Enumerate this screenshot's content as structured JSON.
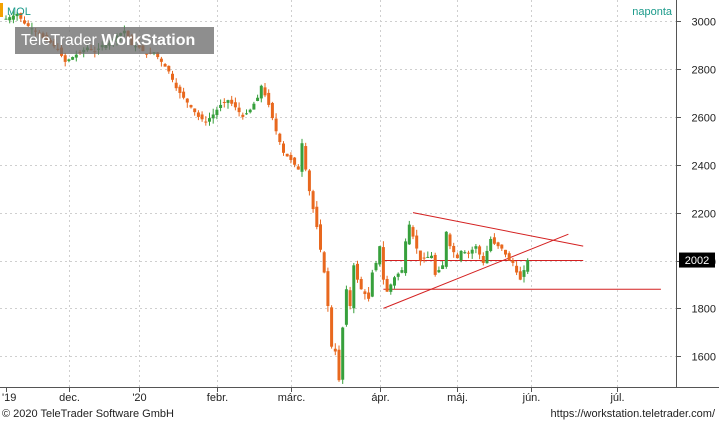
{
  "symbol": "MOL",
  "period_label": "naponta",
  "footer": {
    "copyright": "© 2020 TeleTrader Software GmbH",
    "url": "https://workstation.teletrader.com/"
  },
  "watermark": {
    "brand": "TeleTrader",
    "product": "WorkStation"
  },
  "colors": {
    "up": "#37a03c",
    "down": "#e8681e",
    "trendline": "#d42020",
    "grid": "#cfcfcf",
    "symbol_text": "#1a9a8a"
  },
  "chart_data": {
    "type": "candlestick",
    "title": "MOL",
    "period": "naponta",
    "ylim": [
      1480,
      3080
    ],
    "y_ticks": [
      1600,
      1800,
      2000,
      2200,
      2400,
      2600,
      2800,
      3000
    ],
    "x_ticks": [
      "'19",
      "dec.",
      "'20",
      "febr.",
      "márc.",
      "ápr.",
      "máj.",
      "jún.",
      "júl."
    ],
    "last_value": "2002",
    "last": 2002,
    "close_path": [
      [
        0,
        3010
      ],
      [
        3,
        3030
      ],
      [
        5,
        2990
      ],
      [
        8,
        2960
      ],
      [
        10,
        2930
      ],
      [
        12,
        2910
      ],
      [
        14,
        2880
      ],
      [
        16,
        2830
      ],
      [
        18,
        2850
      ],
      [
        20,
        2870
      ],
      [
        22,
        2890
      ],
      [
        24,
        2870
      ],
      [
        26,
        2900
      ],
      [
        28,
        2910
      ],
      [
        30,
        2940
      ],
      [
        32,
        2960
      ],
      [
        34,
        2900
      ],
      [
        36,
        2890
      ],
      [
        38,
        2860
      ],
      [
        40,
        2870
      ],
      [
        42,
        2830
      ],
      [
        44,
        2790
      ],
      [
        46,
        2720
      ],
      [
        48,
        2680
      ],
      [
        50,
        2640
      ],
      [
        52,
        2600
      ],
      [
        54,
        2580
      ],
      [
        56,
        2610
      ],
      [
        58,
        2650
      ],
      [
        60,
        2670
      ],
      [
        62,
        2640
      ],
      [
        64,
        2600
      ],
      [
        66,
        2630
      ],
      [
        68,
        2680
      ],
      [
        69,
        2730
      ],
      [
        71,
        2650
      ],
      [
        73,
        2540
      ],
      [
        75,
        2450
      ],
      [
        77,
        2420
      ],
      [
        79,
        2380
      ],
      [
        80,
        2490
      ],
      [
        81,
        2380
      ],
      [
        82,
        2290
      ],
      [
        84,
        2140
      ],
      [
        86,
        1950
      ],
      [
        87,
        1810
      ],
      [
        88,
        1640
      ],
      [
        89,
        1620
      ],
      [
        90,
        1500
      ],
      [
        91,
        1720
      ],
      [
        92,
        1880
      ],
      [
        93,
        1810
      ],
      [
        94,
        1980
      ],
      [
        95,
        1920
      ],
      [
        96,
        1880
      ],
      [
        98,
        1840
      ],
      [
        99,
        1950
      ],
      [
        100,
        1990
      ],
      [
        101,
        2060
      ],
      [
        102,
        1920
      ],
      [
        103,
        1870
      ],
      [
        105,
        1930
      ],
      [
        107,
        1960
      ],
      [
        108,
        2080
      ],
      [
        109,
        2150
      ],
      [
        110,
        2100
      ],
      [
        112,
        2000
      ],
      [
        113,
        2010
      ],
      [
        115,
        2020
      ],
      [
        116,
        1940
      ],
      [
        118,
        1980
      ],
      [
        119,
        2120
      ],
      [
        120,
        2060
      ],
      [
        122,
        2010
      ],
      [
        123,
        2040
      ],
      [
        125,
        2030
      ],
      [
        127,
        2060
      ],
      [
        129,
        1990
      ],
      [
        131,
        2090
      ],
      [
        132,
        2070
      ],
      [
        134,
        2050
      ],
      [
        136,
        2000
      ],
      [
        137,
        1990
      ],
      [
        138,
        1950
      ],
      [
        139,
        1920
      ],
      [
        140,
        1960
      ],
      [
        141,
        2002
      ]
    ],
    "trendlines": [
      {
        "from": [
          102,
          1800
        ],
        "to": [
          152,
          2110
        ]
      },
      {
        "from": [
          110,
          2200
        ],
        "to": [
          156,
          2060
        ]
      },
      {
        "from": [
          102,
          2000
        ],
        "to": [
          156,
          2000
        ]
      },
      {
        "from": [
          102,
          1880
        ],
        "to": [
          177,
          1880
        ]
      }
    ],
    "x_tick_positions": [
      0,
      17,
      36,
      57,
      77,
      101,
      122,
      142,
      165
    ]
  }
}
